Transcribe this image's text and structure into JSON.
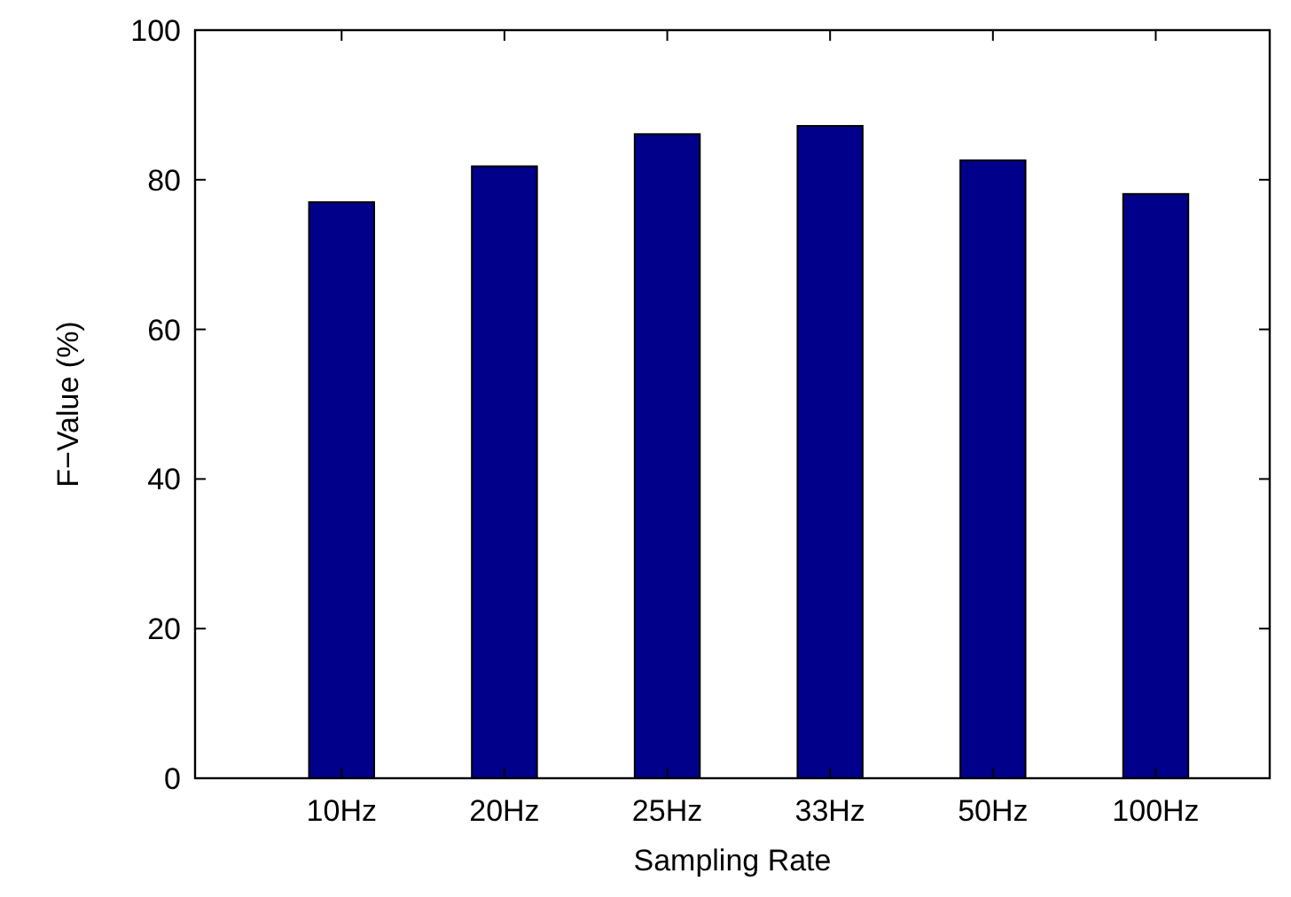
{
  "chart_data": {
    "type": "bar",
    "xlabel": "Sampling Rate",
    "ylabel": "F−Value (%)",
    "categories": [
      "10Hz",
      "20Hz",
      "25Hz",
      "33Hz",
      "50Hz",
      "100Hz"
    ],
    "values": [
      77.0,
      81.8,
      86.1,
      87.2,
      82.6,
      78.1
    ],
    "color": "#00008b",
    "ylim": [
      0,
      100
    ],
    "yticks": [
      0,
      20,
      40,
      60,
      80,
      100
    ],
    "grid": false
  }
}
